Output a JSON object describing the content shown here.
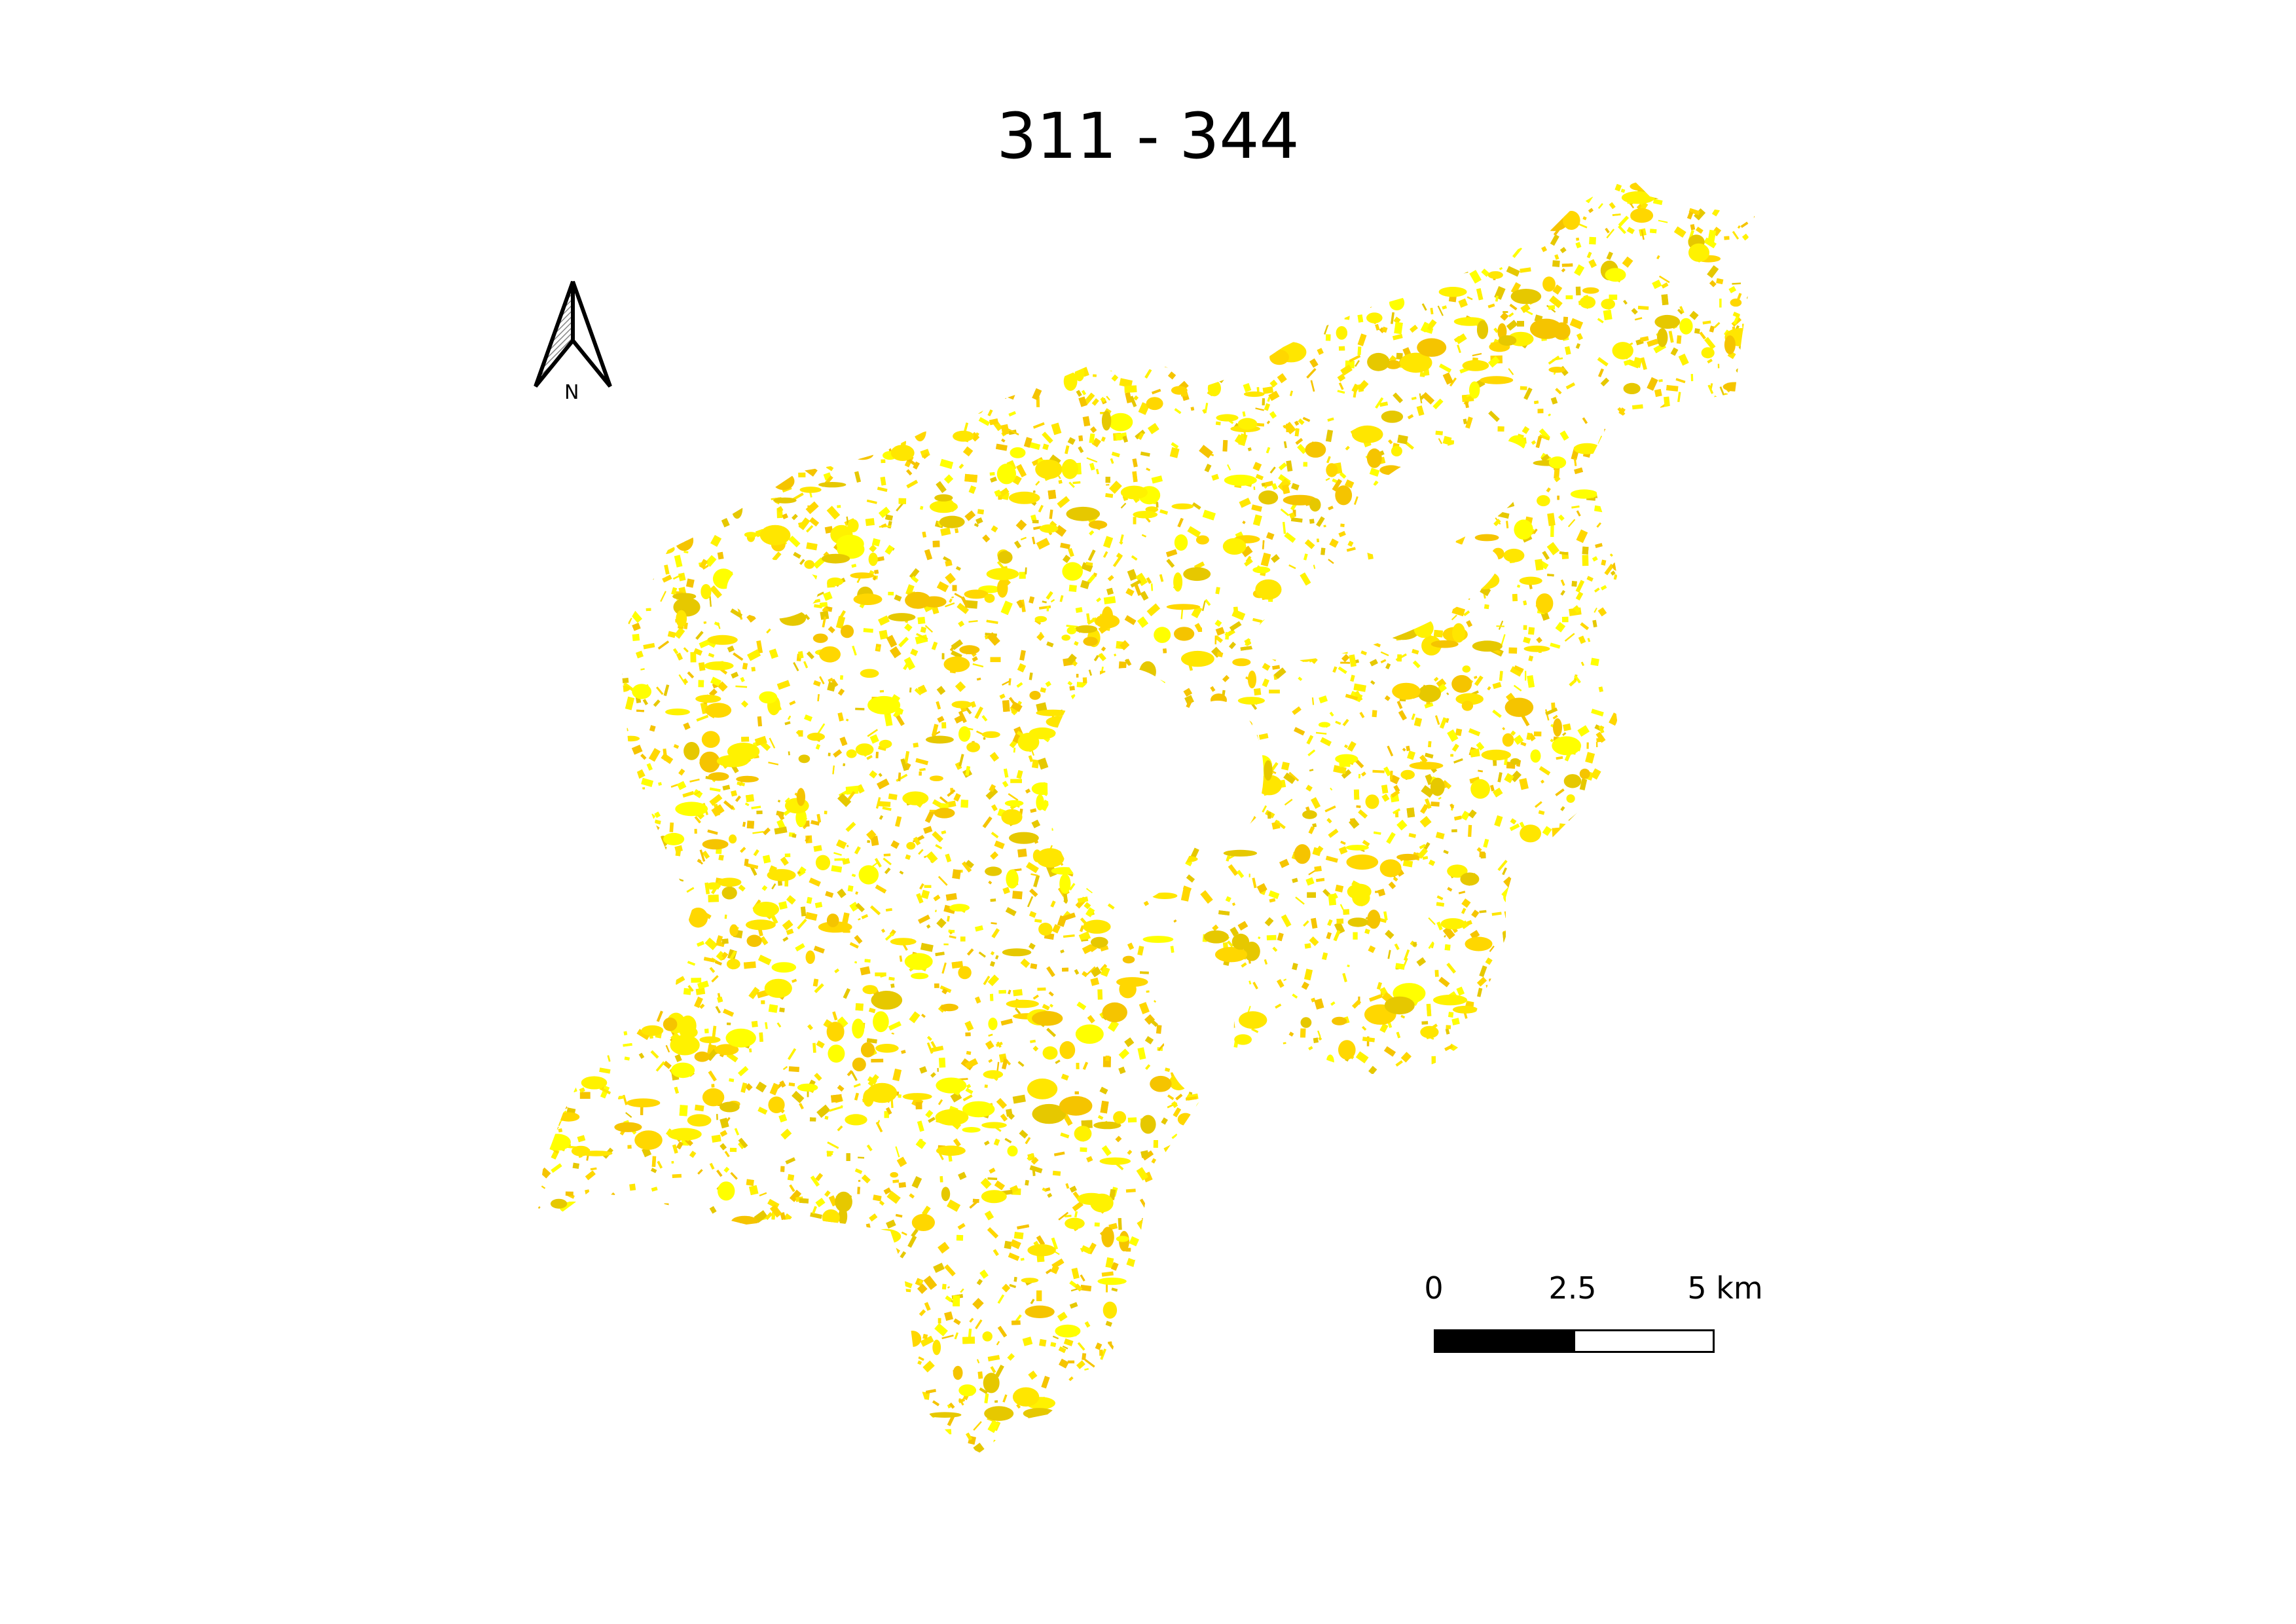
{
  "map": {
    "title": "311 - 344",
    "north_label": "N",
    "fill_colors": [
      "#ffff00",
      "#fff200",
      "#ffe600",
      "#ffd700",
      "#f5c400",
      "#e6c800"
    ],
    "scale_bar": {
      "labels": [
        "0",
        "2.5",
        "5 km"
      ],
      "segment_colors": [
        "#000000",
        "#ffffff"
      ]
    }
  }
}
